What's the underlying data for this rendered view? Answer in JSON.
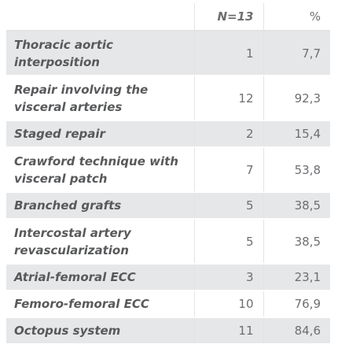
{
  "table": {
    "headers": {
      "label": "",
      "n": "N=13",
      "pct": "%"
    },
    "rows": [
      {
        "label": "Thoracic aortic interposition",
        "n": "1",
        "pct": "7,7"
      },
      {
        "label": "Repair involving the visceral arteries",
        "n": "12",
        "pct": "92,3"
      },
      {
        "label": "Staged repair",
        "n": "2",
        "pct": "15,4"
      },
      {
        "label": "Crawford technique with visceral patch",
        "n": "7",
        "pct": "53,8"
      },
      {
        "label": "Branched grafts",
        "n": "5",
        "pct": "38,5"
      },
      {
        "label": "Intercostal artery revascularization",
        "n": "5",
        "pct": "38,5"
      },
      {
        "label": "Atrial-femoral ECC",
        "n": "3",
        "pct": "23,1"
      },
      {
        "label": "Femoro-femoral ECC",
        "n": "10",
        "pct": "76,9"
      },
      {
        "label": "Octopus system",
        "n": "11",
        "pct": "84,6"
      }
    ]
  }
}
